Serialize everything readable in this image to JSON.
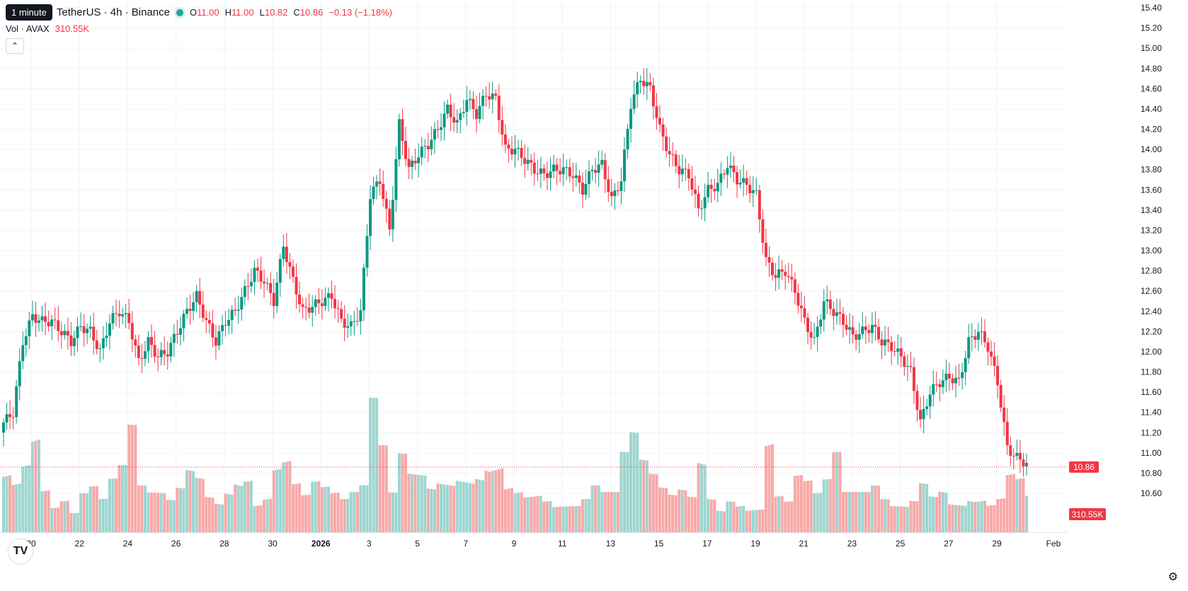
{
  "legend": {
    "tooltip": "1 minute",
    "symbol": "TetherUS · 4h · Binance",
    "o_label": "O",
    "o_value": "11.00",
    "h_label": "H",
    "h_value": "11.00",
    "l_label": "L",
    "l_value": "10.82",
    "c_label": "C",
    "c_value": "10.86",
    "change": "−0.13 (−1.18%)",
    "vol_label": "Vol · AVAX",
    "vol_value": "310.55K"
  },
  "colors": {
    "up": "#089981",
    "down": "#f23645",
    "vol_up": "#9dd6d0",
    "vol_down": "#f7a9a8",
    "grid": "#f0f3fa",
    "text": "#131722"
  },
  "icons": {
    "collapse": "chevron-up-icon",
    "logo": "tradingview-logo-icon",
    "settings": "gear-icon"
  },
  "logo_text": "TV",
  "chart_data": {
    "type": "candlestick",
    "timeframe": "4h",
    "y_range": [
      10.4,
      15.4
    ],
    "y_ticks": [
      10.6,
      10.8,
      11.0,
      11.2,
      11.4,
      11.6,
      11.8,
      12.0,
      12.2,
      12.4,
      12.6,
      12.8,
      13.0,
      13.2,
      13.4,
      13.6,
      13.8,
      14.0,
      14.2,
      14.4,
      14.6,
      14.8,
      15.0,
      15.2,
      15.4
    ],
    "y_tick_labels": [
      "10.60",
      "10.80",
      "11.00",
      "11.20",
      "11.40",
      "11.60",
      "11.80",
      "12.00",
      "12.20",
      "12.40",
      "12.60",
      "12.80",
      "13.00",
      "13.20",
      "13.40",
      "13.60",
      "13.80",
      "14.00",
      "14.20",
      "14.40",
      "14.60",
      "14.80",
      "15.00",
      "15.20",
      "15.40"
    ],
    "x_ticks": [
      {
        "label": "20",
        "bold": false
      },
      {
        "label": "22",
        "bold": false
      },
      {
        "label": "24",
        "bold": false
      },
      {
        "label": "26",
        "bold": false
      },
      {
        "label": "28",
        "bold": false
      },
      {
        "label": "30",
        "bold": false
      },
      {
        "label": "2026",
        "bold": true
      },
      {
        "label": "3",
        "bold": false
      },
      {
        "label": "5",
        "bold": false
      },
      {
        "label": "7",
        "bold": false
      },
      {
        "label": "9",
        "bold": false
      },
      {
        "label": "11",
        "bold": false
      },
      {
        "label": "13",
        "bold": false
      },
      {
        "label": "15",
        "bold": false
      },
      {
        "label": "17",
        "bold": false
      },
      {
        "label": "19",
        "bold": false
      },
      {
        "label": "21",
        "bold": false
      },
      {
        "label": "23",
        "bold": false
      },
      {
        "label": "25",
        "bold": false
      },
      {
        "label": "27",
        "bold": false
      },
      {
        "label": "29",
        "bold": false
      },
      {
        "label": "Feb",
        "bold": false
      }
    ],
    "last_price": 10.86,
    "last_price_label": "10.86",
    "last_volume_label": "310.55K",
    "anchors": [
      11.3,
      11.4,
      12.1,
      12.35,
      12.3,
      12.3,
      12.2,
      12.1,
      12.25,
      12.2,
      12.0,
      12.3,
      12.4,
      12.3,
      11.9,
      12.1,
      11.95,
      12.0,
      12.2,
      12.4,
      12.55,
      12.3,
      12.1,
      12.3,
      12.4,
      12.6,
      12.8,
      12.7,
      12.5,
      13.05,
      12.7,
      12.4,
      12.45,
      12.5,
      12.55,
      12.3,
      12.25,
      12.4,
      13.55,
      13.7,
      13.2,
      14.25,
      13.8,
      13.95,
      14.05,
      14.2,
      14.4,
      14.25,
      14.5,
      14.35,
      14.55,
      14.5,
      14.0,
      14.0,
      13.9,
      13.8,
      13.75,
      13.8,
      13.8,
      13.75,
      13.6,
      13.8,
      13.85,
      13.5,
      13.7,
      14.45,
      14.7,
      14.6,
      14.2,
      13.95,
      13.8,
      13.75,
      13.4,
      13.6,
      13.65,
      13.85,
      13.7,
      13.65,
      13.55,
      12.9,
      12.75,
      12.8,
      12.6,
      12.3,
      12.1,
      12.5,
      12.4,
      12.3,
      12.15,
      12.2,
      12.25,
      12.1,
      12.05,
      11.95,
      11.8,
      11.3,
      11.6,
      11.7,
      11.75,
      11.7,
      12.1,
      12.2,
      12.05,
      11.7,
      11.05,
      10.95,
      10.9
    ],
    "volume_levels": [
      0.55,
      0.45,
      0.6,
      0.8,
      0.35,
      0.2,
      0.25,
      0.15,
      0.3,
      0.35,
      0.25,
      0.4,
      0.5,
      0.8,
      0.35,
      0.3,
      0.3,
      0.25,
      0.35,
      0.5,
      0.45,
      0.3,
      0.25,
      0.35,
      0.45,
      0.5,
      0.25,
      0.3,
      0.55,
      0.6,
      0.4,
      0.3,
      0.4,
      0.35,
      0.3,
      0.25,
      0.3,
      0.35,
      1.0,
      0.65,
      0.3,
      0.6,
      0.45,
      0.45,
      0.35,
      0.4,
      0.4,
      0.45,
      0.45,
      0.5,
      0.6,
      0.6,
      0.4,
      0.35,
      0.3,
      0.3,
      0.25,
      0.2,
      0.2,
      0.2,
      0.25,
      0.35,
      0.3,
      0.3,
      0.6,
      0.75,
      0.55,
      0.45,
      0.35,
      0.3,
      0.35,
      0.3,
      0.6,
      0.3,
      0.2,
      0.3,
      0.25,
      0.2,
      0.2,
      0.75,
      0.3,
      0.25,
      0.45,
      0.4,
      0.3,
      0.4,
      0.6,
      0.3,
      0.3,
      0.3,
      0.35,
      0.25,
      0.2,
      0.2,
      0.25,
      0.4,
      0.3,
      0.35,
      0.25,
      0.25,
      0.3,
      0.3,
      0.25,
      0.3,
      0.5,
      0.45,
      0.3
    ]
  }
}
